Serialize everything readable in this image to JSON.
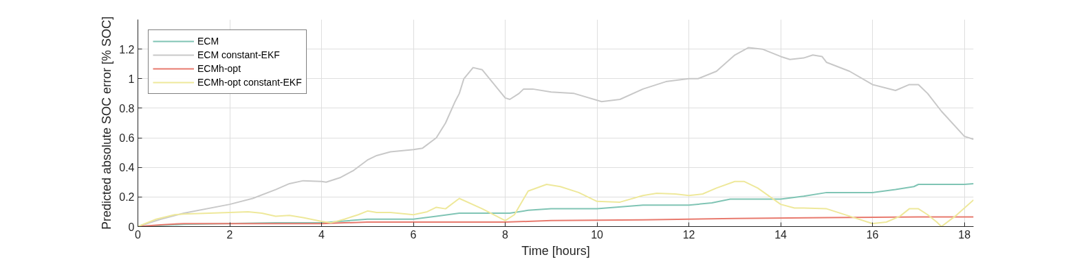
{
  "chart_data": {
    "type": "line",
    "xlabel": "Time [hours]",
    "ylabel": "Predicted absolute SOC error [% SOC]",
    "xlim": [
      0,
      18.2
    ],
    "ylim": [
      0,
      1.4
    ],
    "xticks": [
      0,
      2,
      4,
      6,
      8,
      10,
      12,
      14,
      16,
      18
    ],
    "yticks": [
      0,
      0.2,
      0.4,
      0.6,
      0.8,
      1,
      1.2
    ],
    "grid": true,
    "legend": "top left",
    "marker": "none",
    "line_style": "solid",
    "series": [
      {
        "name": "ECM",
        "color": "#7fc4b4",
        "x": [
          0,
          1,
          3,
          4,
          4.2,
          5,
          6,
          6.5,
          7,
          8.1,
          8.5,
          9,
          10,
          11,
          12,
          12.5,
          12.9,
          14,
          14.5,
          15,
          16,
          16.5,
          16.9,
          17,
          18,
          18.2
        ],
        "values": [
          0,
          0.015,
          0.025,
          0.025,
          0.03,
          0.05,
          0.05,
          0.07,
          0.09,
          0.09,
          0.11,
          0.12,
          0.12,
          0.145,
          0.145,
          0.16,
          0.185,
          0.185,
          0.205,
          0.23,
          0.23,
          0.25,
          0.27,
          0.285,
          0.285,
          0.29
        ]
      },
      {
        "name": "ECM constant-EKF",
        "color": "#c8c8c8",
        "x": [
          0,
          0.5,
          1,
          2,
          2.5,
          3,
          3.3,
          3.6,
          4,
          4.1,
          4.4,
          4.7,
          5,
          5.2,
          5.5,
          6,
          6.2,
          6.5,
          6.7,
          6.9,
          7,
          7.1,
          7.3,
          7.5,
          8,
          8.1,
          8.3,
          8.4,
          8.6,
          9,
          9.5,
          10.1,
          10.5,
          11,
          11.5,
          12,
          12.2,
          12.6,
          13,
          13.3,
          13.6,
          14,
          14.2,
          14.5,
          14.7,
          14.9,
          15,
          15.5,
          16,
          16.5,
          16.8,
          17,
          17.2,
          17.5,
          18,
          18.2
        ],
        "values": [
          0,
          0.05,
          0.09,
          0.15,
          0.19,
          0.25,
          0.29,
          0.31,
          0.305,
          0.3,
          0.33,
          0.38,
          0.45,
          0.48,
          0.505,
          0.52,
          0.53,
          0.6,
          0.7,
          0.84,
          0.9,
          1.0,
          1.075,
          1.06,
          0.87,
          0.86,
          0.9,
          0.93,
          0.93,
          0.91,
          0.9,
          0.845,
          0.86,
          0.93,
          0.98,
          1.0,
          1.0,
          1.05,
          1.16,
          1.21,
          1.2,
          1.15,
          1.13,
          1.14,
          1.16,
          1.15,
          1.11,
          1.05,
          0.96,
          0.92,
          0.96,
          0.96,
          0.9,
          0.78,
          0.61,
          0.59
        ]
      },
      {
        "name": "ECMh-opt",
        "color": "#e8796d",
        "x": [
          0,
          0.5,
          1,
          4,
          4.5,
          5,
          8,
          8.5,
          9,
          11,
          12,
          13,
          15,
          17,
          18.2
        ],
        "values": [
          0,
          0.012,
          0.02,
          0.02,
          0.025,
          0.03,
          0.03,
          0.035,
          0.04,
          0.045,
          0.05,
          0.055,
          0.06,
          0.065,
          0.065
        ]
      },
      {
        "name": "ECMh-opt constant-EKF",
        "color": "#eee89a",
        "x": [
          0,
          0.4,
          0.8,
          1,
          2,
          2.4,
          2.7,
          3,
          3.3,
          3.6,
          4,
          4.2,
          4.5,
          4.8,
          5,
          5.2,
          5.5,
          6,
          6.3,
          6.5,
          6.7,
          7,
          7.5,
          8,
          8.2,
          8.5,
          8.9,
          9.2,
          9.6,
          10,
          10.5,
          11,
          11.3,
          11.7,
          12,
          12.3,
          12.6,
          13,
          13.2,
          13.5,
          14,
          14.3,
          14.5,
          15,
          15.5,
          16,
          16.3,
          16.6,
          16.8,
          17,
          17.2,
          17.4,
          17.5,
          17.8,
          18.2
        ],
        "values": [
          0,
          0.05,
          0.08,
          0.085,
          0.095,
          0.1,
          0.09,
          0.07,
          0.075,
          0.06,
          0.035,
          0.025,
          0.05,
          0.08,
          0.105,
          0.095,
          0.095,
          0.08,
          0.1,
          0.13,
          0.12,
          0.19,
          0.12,
          0.04,
          0.08,
          0.24,
          0.285,
          0.27,
          0.23,
          0.17,
          0.165,
          0.21,
          0.225,
          0.22,
          0.21,
          0.22,
          0.26,
          0.305,
          0.305,
          0.26,
          0.15,
          0.125,
          0.125,
          0.12,
          0.07,
          0.02,
          0.03,
          0.07,
          0.12,
          0.12,
          0.08,
          0.03,
          0.0,
          0.07,
          0.18
        ]
      }
    ]
  }
}
